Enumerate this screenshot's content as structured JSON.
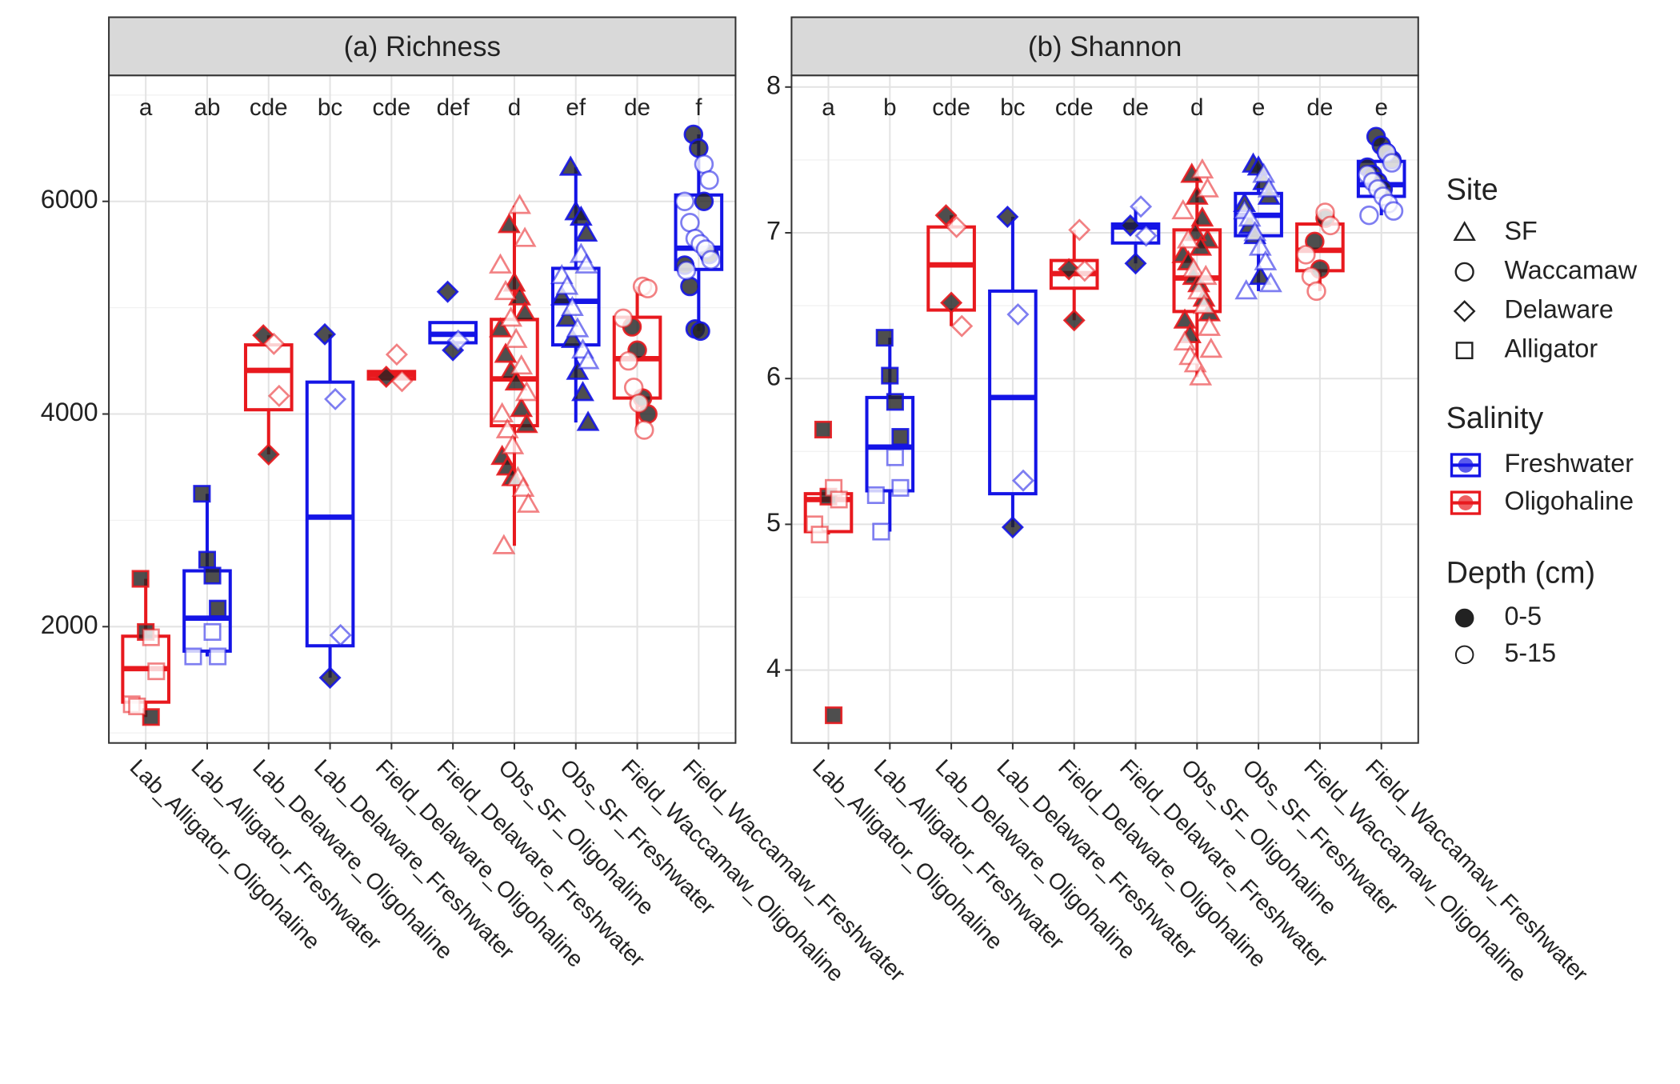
{
  "chart_data": [
    {
      "type": "box",
      "title": "(a) Richness",
      "categories": [
        "Lab_Alligator_Oligohaline",
        "Lab_Alligator_Freshwater",
        "Lab_Delaware_Oligohaline",
        "Lab_Delaware_Freshwater",
        "Field_Delaware_Oligohaline",
        "Field_Delaware_Freshwater",
        "Obs_SF_Oligohaline",
        "Obs_SF_Freshwater",
        "Field_Waccamaw_Oligohaline",
        "Field_Waccamaw_Freshwater"
      ],
      "letters": [
        "a",
        "ab",
        "cde",
        "bc",
        "cde",
        "def",
        "d",
        "ef",
        "de",
        "f"
      ],
      "ylim": [
        906,
        7185
      ],
      "yticks": [
        2000,
        4000,
        6000
      ],
      "minor_yticks": [
        1000,
        3000,
        5000,
        7000
      ],
      "grid": true,
      "groups": [
        {
          "site": "Alligator",
          "color": "#e8191e",
          "min": 1150,
          "q1": 1290,
          "median": 1605,
          "q3": 1910,
          "max": 2450,
          "points_0_5": [
            2450,
            1950,
            1150
          ],
          "points_5_15": [
            1900,
            1580,
            1270,
            1250
          ]
        },
        {
          "site": "Alligator",
          "color": "#1414e6",
          "min": 1720,
          "q1": 1770,
          "median": 2080,
          "q3": 2525,
          "max": 3250,
          "points_0_5": [
            3250,
            2630,
            2480,
            2170
          ],
          "points_5_15": [
            1950,
            1720,
            1720
          ]
        },
        {
          "site": "Delaware",
          "color": "#e8191e",
          "min": 3620,
          "q1": 4040,
          "median": 4410,
          "q3": 4650,
          "max": 4740,
          "points_0_5": [
            4740,
            3620
          ],
          "points_5_15": [
            4660,
            4170
          ]
        },
        {
          "site": "Delaware",
          "color": "#1414e6",
          "min": 1520,
          "q1": 1820,
          "median": 3030,
          "q3": 4300,
          "max": 4750,
          "points_0_5": [
            4750,
            1520
          ],
          "points_5_15": [
            4140,
            1920
          ]
        },
        {
          "site": "Delaware",
          "color": "#e8191e",
          "min": 4310,
          "q1": 4330,
          "median": 4370,
          "q3": 4400,
          "max": 4400,
          "points_0_5": [
            4350
          ],
          "points_5_15": [
            4560,
            4310
          ]
        },
        {
          "site": "Delaware",
          "color": "#1414e6",
          "min": 4670,
          "q1": 4670,
          "median": 4750,
          "q3": 4860,
          "max": 4860,
          "points_0_5": [
            5150,
            4600
          ],
          "points_5_15": [
            4690
          ]
        },
        {
          "site": "SF",
          "color": "#e8191e",
          "min": 2760,
          "q1": 3890,
          "median": 4330,
          "q3": 4890,
          "max": 5960,
          "points_0_5": [
            5780,
            5230,
            5100,
            4950,
            4800,
            4560,
            4400,
            4300,
            4050,
            3900,
            3600,
            3500,
            3400
          ],
          "points_5_15": [
            5960,
            5650,
            5400,
            5150,
            4900,
            4700,
            4450,
            4200,
            4000,
            3850,
            3700,
            3400,
            3300,
            3150,
            2760
          ]
        },
        {
          "site": "SF",
          "color": "#1414e6",
          "min": 3920,
          "q1": 4650,
          "median": 5060,
          "q3": 5370,
          "max": 6320,
          "points_0_5": [
            6320,
            5900,
            5850,
            5700,
            5100,
            4900,
            4700,
            4400,
            4200,
            3920
          ],
          "points_5_15": [
            5500,
            5400,
            5300,
            5200,
            5000,
            4800,
            4600,
            4500
          ]
        },
        {
          "site": "Waccamaw",
          "color": "#e8191e",
          "min": 3850,
          "q1": 4150,
          "median": 4520,
          "q3": 4910,
          "max": 5200,
          "points_0_5": [
            4820,
            4600,
            4150,
            4000
          ],
          "points_5_15": [
            5200,
            5180,
            4900,
            4500,
            4250,
            4100,
            3850
          ]
        },
        {
          "site": "Waccamaw",
          "color": "#1414e6",
          "min": 4780,
          "q1": 5360,
          "median": 5560,
          "q3": 6060,
          "max": 6630,
          "points_0_5": [
            6630,
            6500,
            6000,
            5500,
            5400,
            5200,
            4800,
            4780
          ],
          "points_5_15": [
            6350,
            6200,
            6000,
            5800,
            5650,
            5600,
            5550,
            5450,
            5350
          ]
        }
      ]
    },
    {
      "type": "box",
      "title": "(b) Shannon",
      "categories": [
        "Lab_Alligator_Oligohaline",
        "Lab_Alligator_Freshwater",
        "Lab_Delaware_Oligohaline",
        "Lab_Delaware_Freshwater",
        "Field_Delaware_Oligohaline",
        "Field_Delaware_Freshwater",
        "Obs_SF_Oligohaline",
        "Obs_SF_Freshwater",
        "Field_Waccamaw_Oligohaline",
        "Field_Waccamaw_Freshwater"
      ],
      "letters": [
        "a",
        "b",
        "cde",
        "bc",
        "cde",
        "de",
        "d",
        "e",
        "de",
        "e"
      ],
      "ylim": [
        3.5,
        8.08
      ],
      "yticks": [
        4,
        5,
        6,
        7,
        8
      ],
      "minor_yticks": [
        4.5,
        5.5,
        6.5,
        7.5
      ],
      "grid": true,
      "groups": [
        {
          "site": "Alligator",
          "color": "#e8191e",
          "min": 4.93,
          "q1": 4.95,
          "median": 5.17,
          "q3": 5.21,
          "max": 5.25,
          "points_0_5": [
            5.65,
            5.19,
            3.69
          ],
          "points_5_15": [
            5.25,
            5.17,
            5.0,
            4.93
          ]
        },
        {
          "site": "Alligator",
          "color": "#1414e6",
          "min": 4.95,
          "q1": 5.23,
          "median": 5.53,
          "q3": 5.87,
          "max": 6.28,
          "points_0_5": [
            6.28,
            6.02,
            5.84,
            5.6
          ],
          "points_5_15": [
            5.46,
            5.25,
            5.2,
            4.95
          ]
        },
        {
          "site": "Delaware",
          "color": "#e8191e",
          "min": 6.36,
          "q1": 6.47,
          "median": 6.78,
          "q3": 7.04,
          "max": 7.12,
          "points_0_5": [
            7.12,
            6.52
          ],
          "points_5_15": [
            7.04,
            6.36
          ]
        },
        {
          "site": "Delaware",
          "color": "#1414e6",
          "min": 4.98,
          "q1": 5.21,
          "median": 5.87,
          "q3": 6.6,
          "max": 7.11,
          "points_0_5": [
            7.11,
            4.98
          ],
          "points_5_15": [
            6.44,
            5.3
          ]
        },
        {
          "site": "Delaware",
          "color": "#e8191e",
          "min": 6.4,
          "q1": 6.62,
          "median": 6.72,
          "q3": 6.81,
          "max": 7.02,
          "points_0_5": [
            6.75,
            6.4
          ],
          "points_5_15": [
            7.02,
            6.74
          ]
        },
        {
          "site": "Delaware",
          "color": "#1414e6",
          "min": 6.79,
          "q1": 6.93,
          "median": 7.04,
          "q3": 7.06,
          "max": 7.18,
          "points_0_5": [
            7.05,
            6.79
          ],
          "points_5_15": [
            7.18,
            6.98
          ]
        },
        {
          "site": "SF",
          "color": "#e8191e",
          "min": 6.01,
          "q1": 6.46,
          "median": 6.69,
          "q3": 7.02,
          "max": 7.43,
          "points_0_5": [
            7.4,
            7.25,
            7.1,
            6.95,
            6.85,
            6.8,
            6.7,
            6.65,
            6.55,
            6.45,
            6.4,
            6.3,
            7.0,
            6.9
          ],
          "points_5_15": [
            7.43,
            7.3,
            7.15,
            6.95,
            6.75,
            6.6,
            6.5,
            6.35,
            6.25,
            6.15,
            6.1,
            6.01,
            6.7,
            6.2
          ]
        },
        {
          "site": "SF",
          "color": "#1414e6",
          "min": 6.6,
          "q1": 6.98,
          "median": 7.12,
          "q3": 7.27,
          "max": 7.47,
          "points_0_5": [
            7.47,
            7.45,
            7.35,
            7.25,
            7.2,
            7.05,
            6.98,
            6.7
          ],
          "points_5_15": [
            7.4,
            7.3,
            7.15,
            7.1,
            7.0,
            6.9,
            6.8,
            6.65,
            6.6
          ]
        },
        {
          "site": "Waccamaw",
          "color": "#e8191e",
          "min": 6.6,
          "q1": 6.74,
          "median": 6.88,
          "q3": 7.06,
          "max": 7.14,
          "points_0_5": [
            6.94,
            6.75,
            7.1
          ],
          "points_5_15": [
            7.14,
            7.05,
            6.85,
            6.7,
            6.6
          ]
        },
        {
          "site": "Waccamaw",
          "color": "#1414e6",
          "min": 7.12,
          "q1": 7.25,
          "median": 7.33,
          "q3": 7.49,
          "max": 7.66,
          "points_0_5": [
            7.66,
            7.6,
            7.55,
            7.5,
            7.45,
            7.4,
            7.35,
            7.3
          ],
          "points_5_15": [
            7.55,
            7.48,
            7.4,
            7.35,
            7.3,
            7.25,
            7.2,
            7.15,
            7.12
          ]
        }
      ]
    }
  ],
  "legend": {
    "site": {
      "title": "Site",
      "items": [
        "SF",
        "Waccamaw",
        "Delaware",
        "Alligator"
      ]
    },
    "salinity": {
      "title": "Salinity",
      "items": [
        {
          "name": "Freshwater",
          "color": "#1414e6"
        },
        {
          "name": "Oligohaline",
          "color": "#e8191e"
        }
      ]
    },
    "depth": {
      "title": "Depth (cm)",
      "items": [
        "0-5",
        "5-15"
      ]
    }
  }
}
